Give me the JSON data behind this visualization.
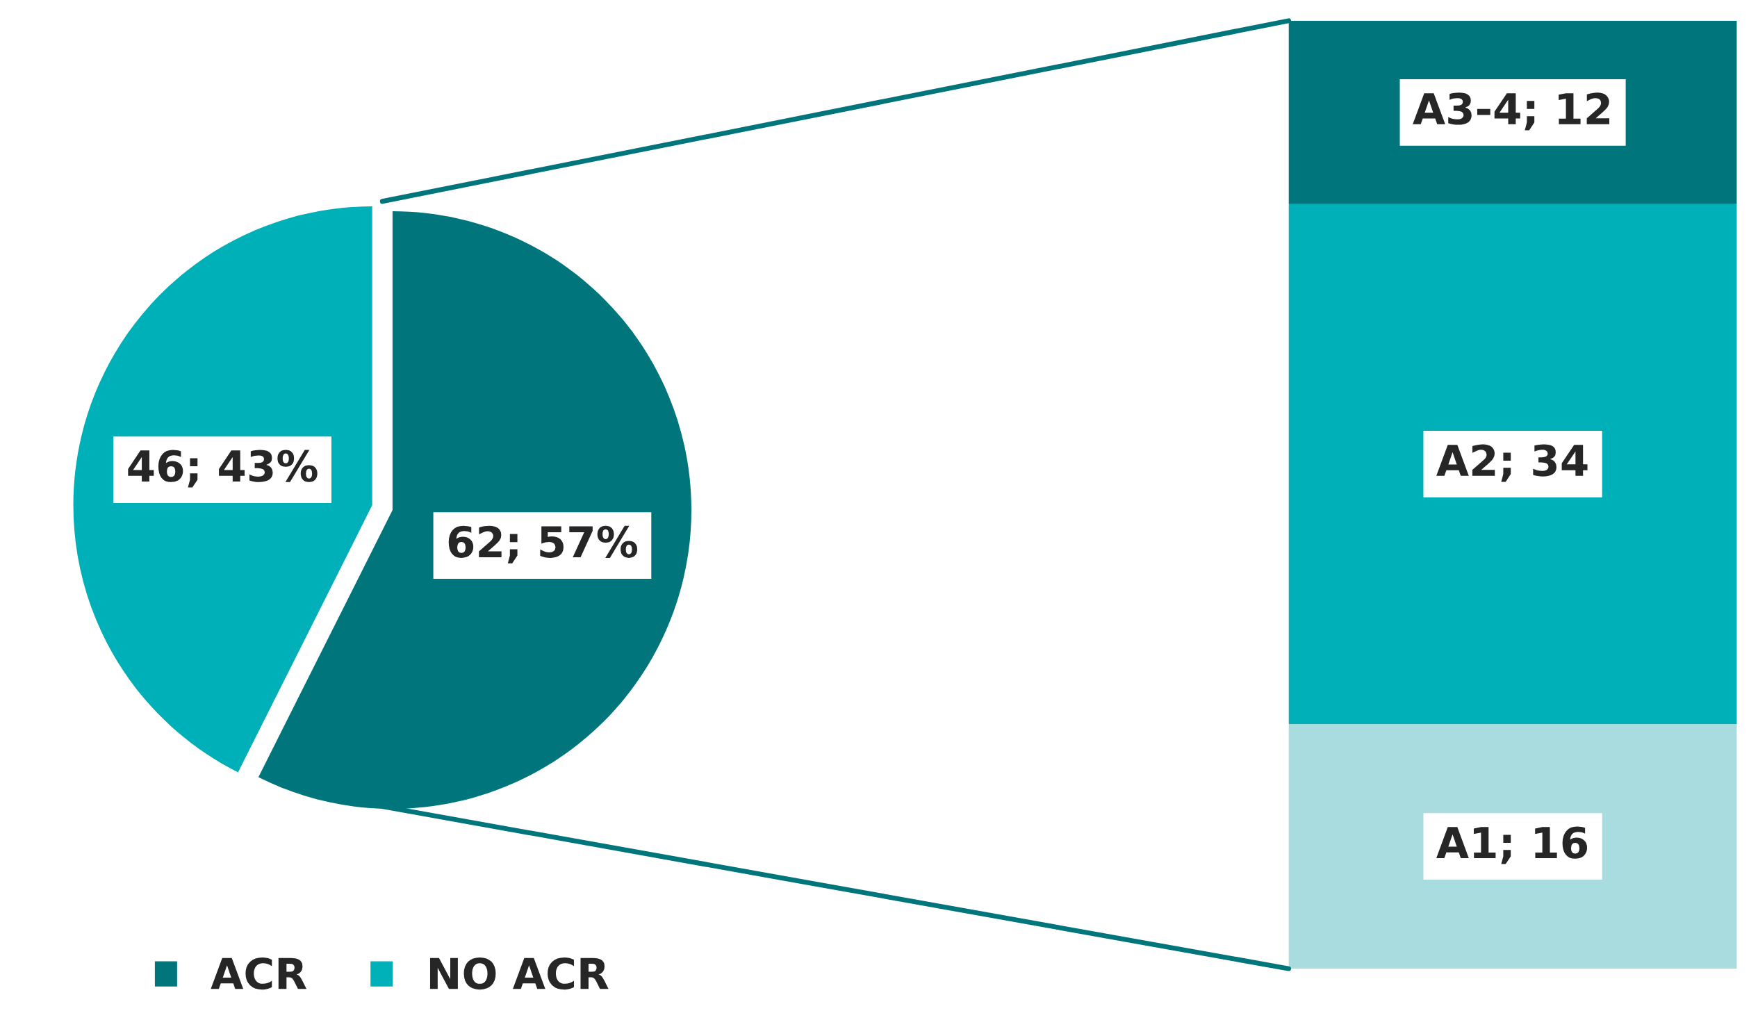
{
  "chart_data": [
    {
      "type": "pie",
      "categories": [
        "ACR",
        "NO ACR"
      ],
      "values": [
        62,
        46
      ],
      "colors": [
        "#00767c",
        "#00b0b9"
      ],
      "value_labels": [
        "62; 57%",
        "46; 43%"
      ],
      "legend": "bottom"
    },
    {
      "type": "bar",
      "stacked": true,
      "categories": [
        null
      ],
      "series": [
        {
          "color": "#a9dcdf",
          "values": [
            16
          ],
          "value_labels": [
            "A1; 16"
          ]
        },
        {
          "color": "#00b0b9",
          "values": [
            34
          ],
          "value_labels": [
            "A2; 34"
          ]
        },
        {
          "color": "#00767c",
          "values": [
            12
          ],
          "value_labels": [
            "A3-4; 12"
          ]
        }
      ]
    }
  ]
}
